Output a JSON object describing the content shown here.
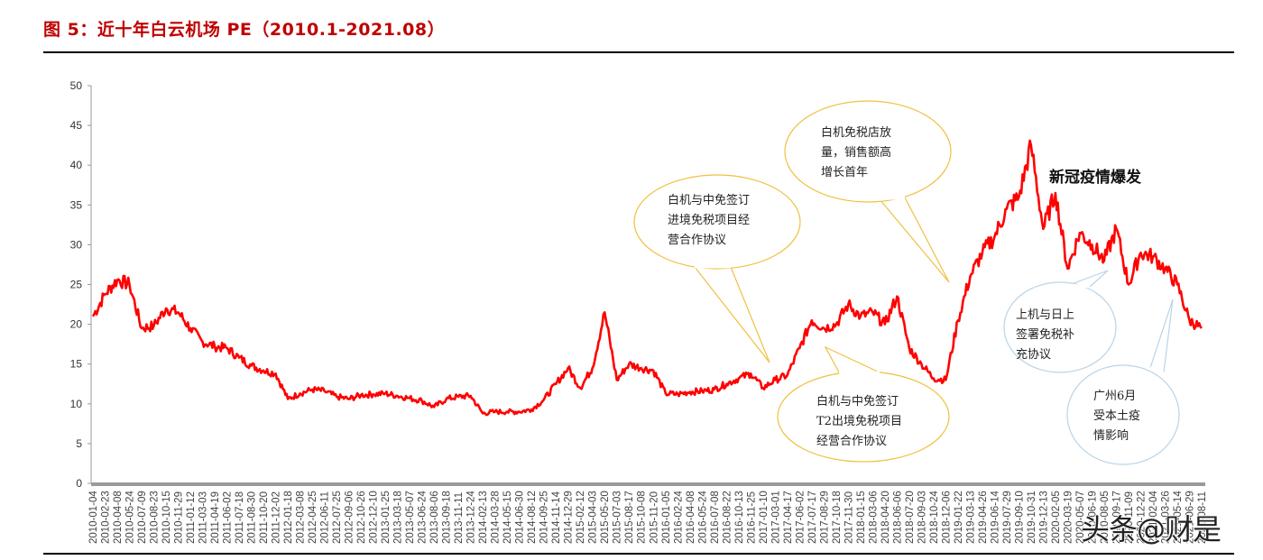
{
  "header": {
    "title": "图 5：近十年白云机场 PE（2010.1-2021.08）"
  },
  "colors": {
    "title": "#c00000",
    "line": "#ff0000",
    "axis": "#999999",
    "bubble_yellow": "#f0c040",
    "bubble_blue": "#b8d4e8"
  },
  "watermark": "头条@财是",
  "chart_data": {
    "type": "line",
    "title": "近十年白云机场 PE（2010.1-2021.08）",
    "xlabel": "",
    "ylabel": "",
    "ylim": [
      0,
      50
    ],
    "yticks": [
      0,
      5,
      10,
      15,
      20,
      25,
      30,
      35,
      40,
      45,
      50
    ],
    "grid": false,
    "legend": null,
    "categories": [
      "2010-01-04",
      "2010-02-23",
      "2010-04-08",
      "2010-05-24",
      "2010-07-09",
      "2010-08-23",
      "2010-10-15",
      "2010-11-29",
      "2011-01-12",
      "2011-03-03",
      "2011-04-19",
      "2011-06-02",
      "2011-07-18",
      "2011-08-30",
      "2011-10-20",
      "2011-12-02",
      "2012-01-18",
      "2012-03-08",
      "2012-04-25",
      "2012-06-11",
      "2012-07-25",
      "2012-09-06",
      "2012-10-26",
      "2012-12-10",
      "2013-01-25",
      "2013-03-18",
      "2013-05-07",
      "2013-06-24",
      "2013-08-06",
      "2013-09-18",
      "2013-11-11",
      "2013-12-24",
      "2014-02-13",
      "2014-03-28",
      "2014-05-15",
      "2014-06-30",
      "2014-08-12",
      "2014-09-25",
      "2014-11-14",
      "2014-12-29",
      "2015-02-12",
      "2015-04-03",
      "2015-05-20",
      "2015-07-03",
      "2015-08-17",
      "2015-10-08",
      "2015-11-20",
      "2016-01-05",
      "2016-02-24",
      "2016-04-08",
      "2016-05-24",
      "2016-07-08",
      "2016-08-22",
      "2016-10-13",
      "2016-11-25",
      "2017-01-10",
      "2017-03-01",
      "2017-04-17",
      "2017-06-02",
      "2017-07-17",
      "2017-08-29",
      "2017-10-18",
      "2017-11-30",
      "2018-01-15",
      "2018-03-06",
      "2018-04-20",
      "2018-06-06",
      "2018-07-20",
      "2018-09-03",
      "2018-10-24",
      "2018-12-06",
      "2019-01-22",
      "2019-03-13",
      "2019-04-26",
      "2019-06-14",
      "2019-07-29",
      "2019-09-10",
      "2019-10-31",
      "2019-12-13",
      "2020-02-05",
      "2020-03-19",
      "2020-05-07",
      "2020-06-19",
      "2020-08-05",
      "2020-09-17",
      "2020-11-09",
      "2020-12-22",
      "2021-02-04",
      "2021-03-26",
      "2021-05-14",
      "2021-06-29",
      "2021-08-11"
    ],
    "series": [
      {
        "name": "白云机场 PE",
        "values": [
          21.0,
          23.8,
          25.6,
          25.0,
          19.5,
          19.8,
          22.0,
          21.5,
          19.5,
          17.8,
          17.2,
          17.0,
          15.8,
          14.8,
          14.2,
          13.8,
          10.6,
          11.3,
          11.8,
          11.6,
          10.9,
          10.6,
          11.1,
          11.2,
          11.3,
          11.0,
          10.7,
          10.4,
          9.6,
          10.6,
          10.9,
          11.0,
          8.8,
          9.0,
          9.0,
          9.0,
          9.3,
          10.5,
          12.5,
          14.5,
          12.0,
          14.5,
          21.5,
          13.0,
          15.0,
          14.5,
          14.2,
          11.3,
          11.2,
          11.5,
          11.6,
          11.8,
          12.5,
          13.2,
          13.8,
          12.0,
          13.0,
          13.6,
          17.0,
          20.5,
          19.5,
          20.0,
          22.5,
          21.0,
          21.5,
          20.0,
          23.5,
          17.0,
          15.0,
          13.2,
          13.0,
          20.5,
          26.0,
          29.0,
          31.0,
          34.5,
          36.0,
          42.5,
          32.0,
          36.5,
          27.0,
          31.5,
          30.0,
          28.0,
          32.0,
          25.0,
          29.0,
          28.5,
          27.0,
          25.0,
          20.5,
          19.5
        ]
      }
    ],
    "annotations": [
      {
        "text": "白机与中免签订进境免税项目经营合作协议",
        "lines": [
          "白机与中免签订",
          "进境免税项目经",
          "营合作协议"
        ],
        "style": "yellow-bubble",
        "points_to": "2017-01-10"
      },
      {
        "text": "白机免税店放量，销售额高增长首年",
        "lines": [
          "白机免税店放",
          "量，销售额高",
          "增长首年"
        ],
        "style": "yellow-bubble",
        "points_to": "2019-01-22"
      },
      {
        "text": "白机与中免签订T2出境免税项目经营合作协议",
        "lines": [
          "白机与中免签订",
          "T2出境免税项目",
          "经营合作协议"
        ],
        "style": "yellow-bubble",
        "points_to": "2017-08-29"
      },
      {
        "text": "上机与日上签署免税补充协议",
        "lines": [
          "上机与日上",
          "签署免税补",
          "充协议"
        ],
        "style": "blue-bubble",
        "points_to": "2020-05-07"
      },
      {
        "text": "广州6月受本土疫情影响",
        "lines": [
          "广州6月",
          "受本土疫",
          "情影响"
        ],
        "style": "blue-bubble",
        "points_to": "2021-05-14"
      },
      {
        "text": "新冠疫情爆发",
        "lines": [
          "新冠疫情爆发"
        ],
        "style": "plain-bold",
        "points_to": "2020-02-05"
      }
    ]
  }
}
